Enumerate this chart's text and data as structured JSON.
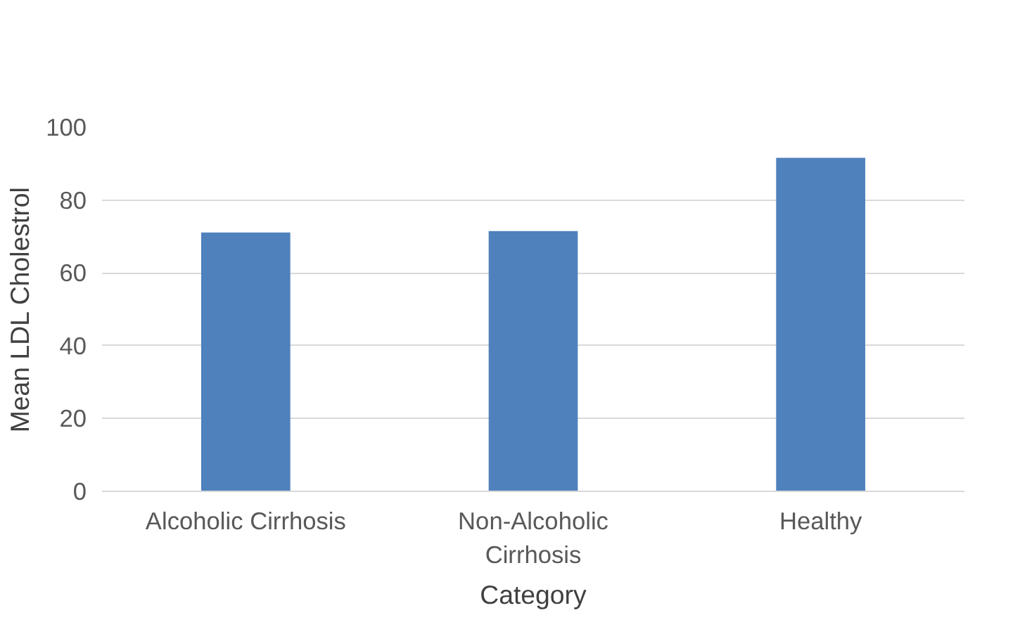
{
  "chart_data": {
    "type": "bar",
    "xlabel": "Category",
    "ylabel": "Mean LDL Cholestrol",
    "categories": [
      "Alcoholic Cirrhosis",
      "Non-Alcoholic\nCirrhosis",
      "Healthy"
    ],
    "values": [
      71.1,
      71.5,
      91.6
    ],
    "color": "#4f81bd",
    "ylim": [
      0,
      100
    ],
    "yticks": [
      0,
      20,
      40,
      60,
      80,
      100
    ],
    "grid": "y"
  }
}
